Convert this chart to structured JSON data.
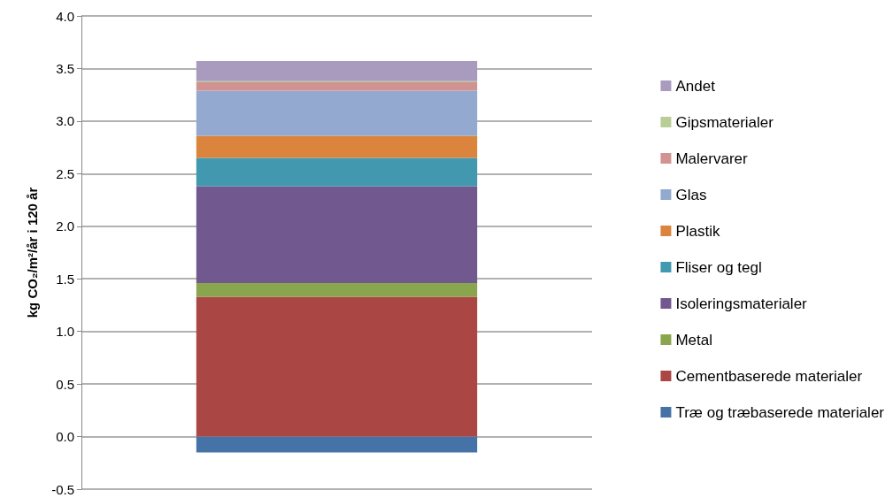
{
  "chart_data": {
    "type": "bar",
    "stacked": true,
    "ylabel": "kg CO₂/m²/år i 120 år",
    "categories": [
      null
    ],
    "ylim": [
      -0.5,
      4.0
    ],
    "yticks": [
      {
        "value": -0.5,
        "label": "-0.5"
      },
      {
        "value": 0,
        "label": "0.0"
      },
      {
        "value": 0.5,
        "label": "0.5"
      },
      {
        "value": 1,
        "label": "1.0"
      },
      {
        "value": 1.5,
        "label": "1.5"
      },
      {
        "value": 2,
        "label": "2.0"
      },
      {
        "value": 2.5,
        "label": "2.5"
      },
      {
        "value": 3,
        "label": "3.0"
      },
      {
        "value": 3.5,
        "label": "3.5"
      },
      {
        "value": 4,
        "label": "4.0"
      }
    ],
    "grid": "y",
    "legend": "right",
    "series": [
      {
        "name": "Træ og træbaserede materialer",
        "color": "#4572a7",
        "values": [
          -0.15
        ]
      },
      {
        "name": "Cementbaserede materialer",
        "color": "#aa4643",
        "values": [
          1.33
        ]
      },
      {
        "name": "Metal",
        "color": "#89a54e",
        "values": [
          0.13
        ]
      },
      {
        "name": "Isoleringsmaterialer",
        "color": "#71588f",
        "values": [
          0.92
        ]
      },
      {
        "name": "Fliser og tegl",
        "color": "#4198af",
        "values": [
          0.27
        ]
      },
      {
        "name": "Plastik",
        "color": "#db843d",
        "values": [
          0.21
        ]
      },
      {
        "name": "Glas",
        "color": "#93a9cf",
        "values": [
          0.43
        ]
      },
      {
        "name": "Malervarer",
        "color": "#d19392",
        "values": [
          0.08
        ]
      },
      {
        "name": "Gipsmaterialer",
        "color": "#b9cd96",
        "values": [
          0.01
        ]
      },
      {
        "name": "Andet",
        "color": "#a99bbd",
        "values": [
          0.19
        ]
      }
    ]
  }
}
